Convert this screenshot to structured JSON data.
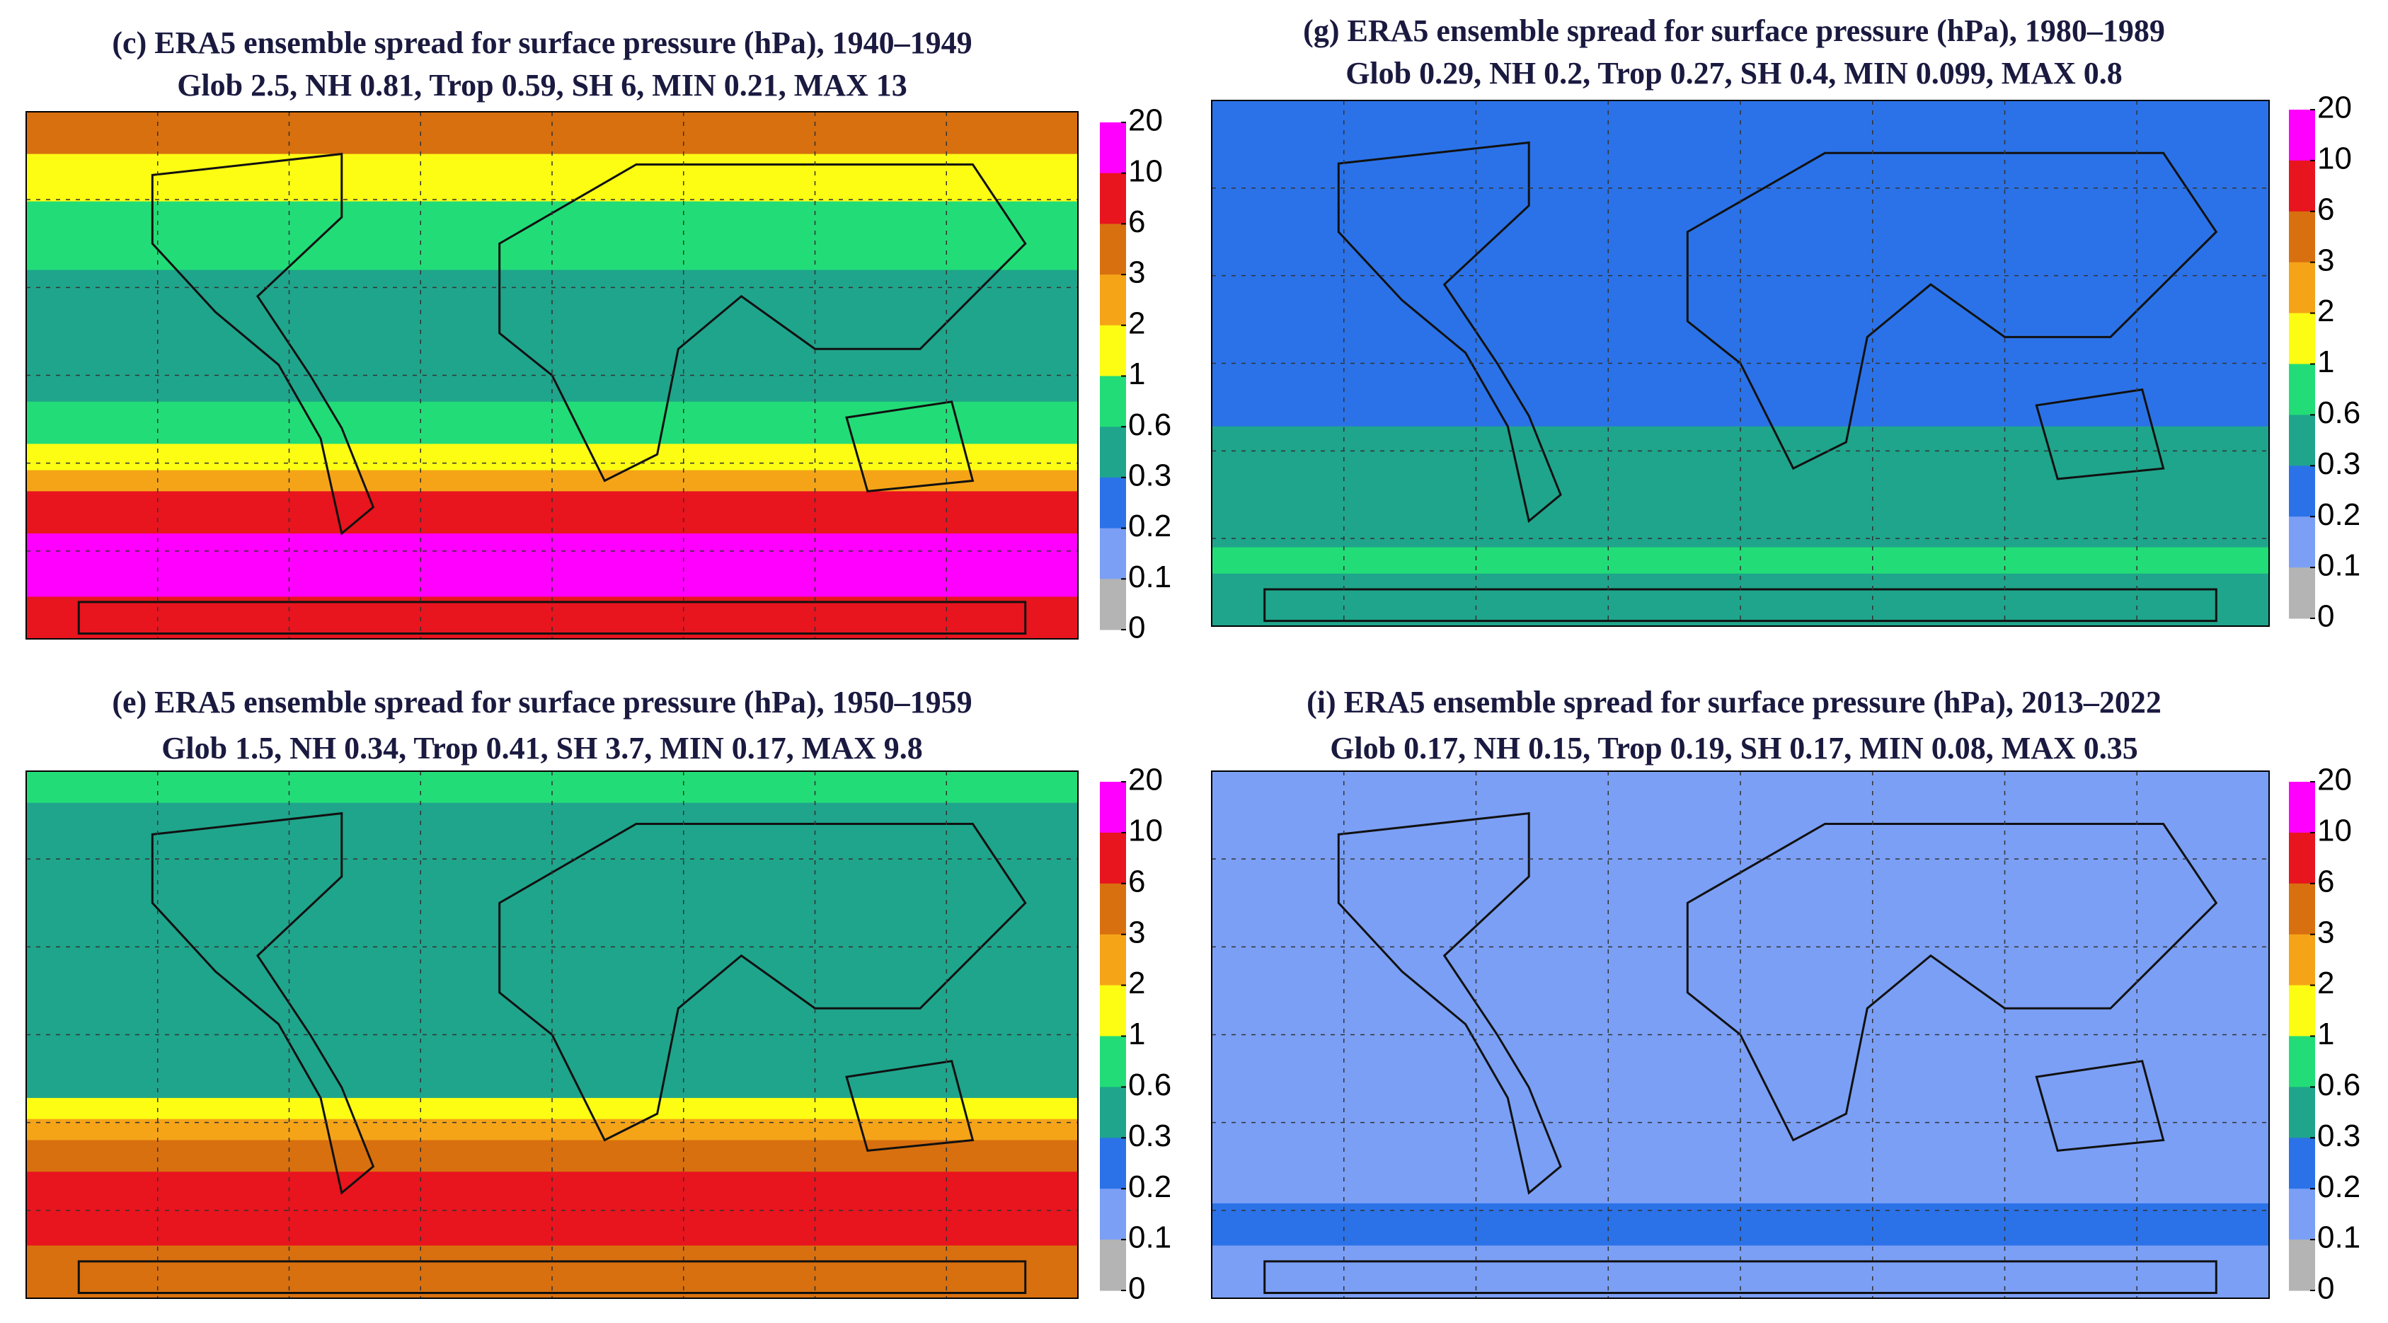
{
  "panels": [
    {
      "title": "(c) ERA5 ensemble spread for surface pressure (hPa), 1940–1949",
      "subtitle": "Glob 2.5, NH 0.81, Trop 0.59, SH 6, MIN 0.21, MAX 13"
    },
    {
      "title": "(g) ERA5 ensemble spread for surface pressure (hPa), 1980–1989",
      "subtitle": "Glob 0.29, NH 0.2, Trop 0.27, SH 0.4, MIN 0.099, MAX 0.8"
    },
    {
      "title": "(e) ERA5 ensemble spread for surface pressure (hPa), 1950–1959",
      "subtitle": "Glob 1.5, NH 0.34, Trop 0.41, SH 3.7, MIN 0.17, MAX 9.8"
    },
    {
      "title": "(i) ERA5 ensemble spread for surface pressure (hPa), 2013–2022",
      "subtitle": "Glob 0.17, NH 0.15, Trop 0.19, SH 0.17, MIN 0.08, MAX 0.35"
    }
  ],
  "colorbar": {
    "ticks": [
      20,
      10,
      6,
      3,
      2,
      1,
      0.6,
      0.3,
      0.2,
      0.1,
      0
    ],
    "colors": [
      "#ff00ff",
      "#e8141e",
      "#d8700f",
      "#f5a418",
      "#fdfd14",
      "#22dd77",
      "#1fa58c",
      "#2b72e8",
      "#7b9ff5",
      "#b4b4b4"
    ]
  }
}
